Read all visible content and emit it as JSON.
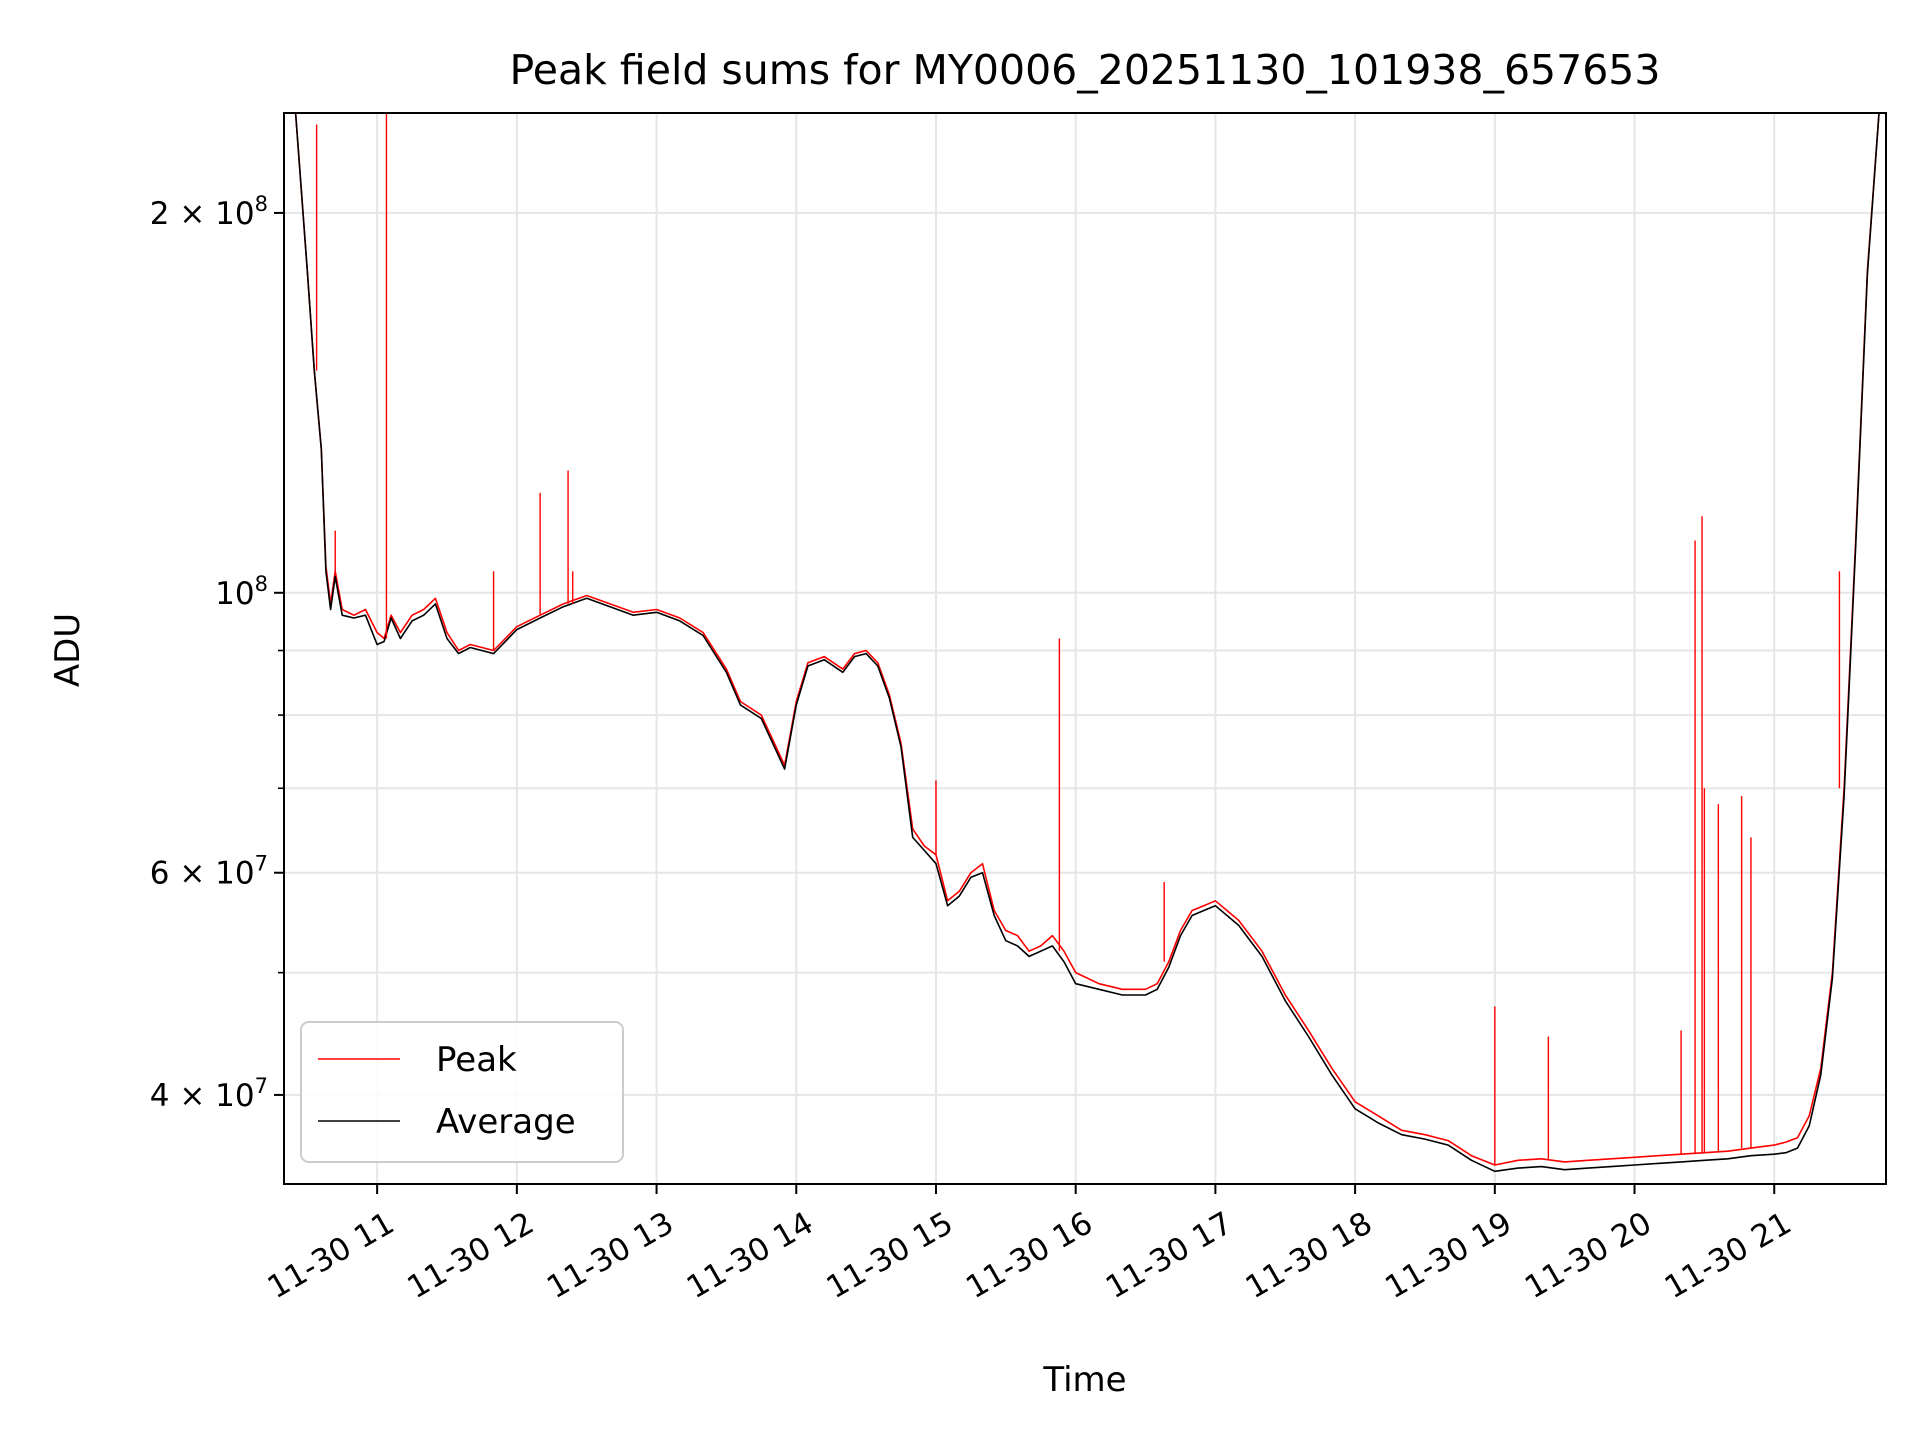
{
  "chart_data": {
    "type": "line",
    "title": "Peak field sums for MY0006_20251130_101938_657653",
    "xlabel": "Time",
    "ylabel": "ADU",
    "xlim": [
      "2025-11-30 10:20",
      "2025-11-30 21:48"
    ],
    "ylim": [
      34000000,
      240000000
    ],
    "y_scale": "log",
    "grid": true,
    "legend_position": "lower-left",
    "x_ticks": [
      "11-30 11",
      "11-30 12",
      "11-30 13",
      "11-30 14",
      "11-30 15",
      "11-30 16",
      "11-30 17",
      "11-30 18",
      "11-30 19",
      "11-30 20",
      "11-30 21"
    ],
    "x_tick_times": [
      "2025-11-30 11:00",
      "2025-11-30 12:00",
      "2025-11-30 13:00",
      "2025-11-30 14:00",
      "2025-11-30 15:00",
      "2025-11-30 16:00",
      "2025-11-30 17:00",
      "2025-11-30 18:00",
      "2025-11-30 19:00",
      "2025-11-30 20:00",
      "2025-11-30 21:00"
    ],
    "y_ticks": [
      {
        "value": 40000000,
        "mantissa": "4",
        "exp": "7"
      },
      {
        "value": 60000000,
        "mantissa": "6",
        "exp": "7"
      },
      {
        "value": 100000000,
        "mantissa": "",
        "exp": "8"
      },
      {
        "value": 200000000,
        "mantissa": "2",
        "exp": "8"
      }
    ],
    "y_minor_ticks": [
      50000000,
      70000000,
      80000000,
      90000000
    ],
    "series": [
      {
        "name": "Peak",
        "color": "#ff0000",
        "x": [
          "2025-11-30 10:25",
          "2025-11-30 10:30",
          "2025-11-30 10:33",
          "2025-11-30 10:36",
          "2025-11-30 10:38",
          "2025-11-30 10:40",
          "2025-11-30 10:42",
          "2025-11-30 10:45",
          "2025-11-30 10:50",
          "2025-11-30 10:55",
          "2025-11-30 11:00",
          "2025-11-30 11:03",
          "2025-11-30 11:06",
          "2025-11-30 11:10",
          "2025-11-30 11:15",
          "2025-11-30 11:20",
          "2025-11-30 11:25",
          "2025-11-30 11:30",
          "2025-11-30 11:35",
          "2025-11-30 11:40",
          "2025-11-30 11:50",
          "2025-11-30 12:00",
          "2025-11-30 12:10",
          "2025-11-30 12:20",
          "2025-11-30 12:30",
          "2025-11-30 12:40",
          "2025-11-30 12:50",
          "2025-11-30 13:00",
          "2025-11-30 13:10",
          "2025-11-30 13:20",
          "2025-11-30 13:30",
          "2025-11-30 13:36",
          "2025-11-30 13:45",
          "2025-11-30 13:55",
          "2025-11-30 14:00",
          "2025-11-30 14:05",
          "2025-11-30 14:12",
          "2025-11-30 14:20",
          "2025-11-30 14:25",
          "2025-11-30 14:30",
          "2025-11-30 14:35",
          "2025-11-30 14:40",
          "2025-11-30 14:45",
          "2025-11-30 14:50",
          "2025-11-30 14:55",
          "2025-11-30 15:00",
          "2025-11-30 15:05",
          "2025-11-30 15:10",
          "2025-11-30 15:15",
          "2025-11-30 15:20",
          "2025-11-30 15:25",
          "2025-11-30 15:30",
          "2025-11-30 15:35",
          "2025-11-30 15:40",
          "2025-11-30 15:45",
          "2025-11-30 15:50",
          "2025-11-30 15:55",
          "2025-11-30 16:00",
          "2025-11-30 16:10",
          "2025-11-30 16:20",
          "2025-11-30 16:25",
          "2025-11-30 16:30",
          "2025-11-30 16:35",
          "2025-11-30 16:40",
          "2025-11-30 16:45",
          "2025-11-30 16:50",
          "2025-11-30 16:55",
          "2025-11-30 17:00",
          "2025-11-30 17:10",
          "2025-11-30 17:20",
          "2025-11-30 17:30",
          "2025-11-30 17:40",
          "2025-11-30 17:50",
          "2025-11-30 18:00",
          "2025-11-30 18:10",
          "2025-11-30 18:20",
          "2025-11-30 18:30",
          "2025-11-30 18:40",
          "2025-11-30 18:50",
          "2025-11-30 19:00",
          "2025-11-30 19:10",
          "2025-11-30 19:20",
          "2025-11-30 19:30",
          "2025-11-30 19:40",
          "2025-11-30 19:50",
          "2025-11-30 20:00",
          "2025-11-30 20:10",
          "2025-11-30 20:20",
          "2025-11-30 20:30",
          "2025-11-30 20:40",
          "2025-11-30 20:50",
          "2025-11-30 21:00",
          "2025-11-30 21:05",
          "2025-11-30 21:10",
          "2025-11-30 21:15",
          "2025-11-30 21:20",
          "2025-11-30 21:25",
          "2025-11-30 21:30",
          "2025-11-30 21:35",
          "2025-11-30 21:40",
          "2025-11-30 21:45"
        ],
        "y": [
          240000000,
          180000000,
          150000000,
          130000000,
          105000000,
          98000000,
          104000000,
          97000000,
          96000000,
          97000000,
          93000000,
          92000000,
          96000000,
          93000000,
          96000000,
          97000000,
          99000000,
          93000000,
          90000000,
          91000000,
          90000000,
          94000000,
          96000000,
          98000000,
          99500000,
          98000000,
          96500000,
          97000000,
          95500000,
          93000000,
          87000000,
          82000000,
          80000000,
          73000000,
          82000000,
          88000000,
          89000000,
          87000000,
          89500000,
          90000000,
          88000000,
          83000000,
          76000000,
          65000000,
          63000000,
          62000000,
          57000000,
          58000000,
          60000000,
          61000000,
          56000000,
          54000000,
          53500000,
          52000000,
          52500000,
          53500000,
          52000000,
          50000000,
          49000000,
          48500000,
          48500000,
          48500000,
          49000000,
          51000000,
          54000000,
          56000000,
          56500000,
          57000000,
          55000000,
          52000000,
          48000000,
          45000000,
          42000000,
          39500000,
          38500000,
          37500000,
          37200000,
          36800000,
          35800000,
          35200000,
          35500000,
          35600000,
          35400000,
          35500000,
          35600000,
          35700000,
          35800000,
          35900000,
          36000000,
          36100000,
          36300000,
          36500000,
          36700000,
          37000000,
          38500000,
          42000000,
          50000000,
          70000000,
          110000000,
          180000000,
          240000000
        ]
      },
      {
        "name": "Average",
        "color": "#000000",
        "x": [
          "2025-11-30 10:25",
          "2025-11-30 10:30",
          "2025-11-30 10:33",
          "2025-11-30 10:36",
          "2025-11-30 10:38",
          "2025-11-30 10:40",
          "2025-11-30 10:42",
          "2025-11-30 10:45",
          "2025-11-30 10:50",
          "2025-11-30 10:55",
          "2025-11-30 11:00",
          "2025-11-30 11:03",
          "2025-11-30 11:06",
          "2025-11-30 11:10",
          "2025-11-30 11:15",
          "2025-11-30 11:20",
          "2025-11-30 11:25",
          "2025-11-30 11:30",
          "2025-11-30 11:35",
          "2025-11-30 11:40",
          "2025-11-30 11:50",
          "2025-11-30 12:00",
          "2025-11-30 12:10",
          "2025-11-30 12:20",
          "2025-11-30 12:30",
          "2025-11-30 12:40",
          "2025-11-30 12:50",
          "2025-11-30 13:00",
          "2025-11-30 13:10",
          "2025-11-30 13:20",
          "2025-11-30 13:30",
          "2025-11-30 13:36",
          "2025-11-30 13:45",
          "2025-11-30 13:55",
          "2025-11-30 14:00",
          "2025-11-30 14:05",
          "2025-11-30 14:12",
          "2025-11-30 14:20",
          "2025-11-30 14:25",
          "2025-11-30 14:30",
          "2025-11-30 14:35",
          "2025-11-30 14:40",
          "2025-11-30 14:45",
          "2025-11-30 14:50",
          "2025-11-30 14:55",
          "2025-11-30 15:00",
          "2025-11-30 15:05",
          "2025-11-30 15:10",
          "2025-11-30 15:15",
          "2025-11-30 15:20",
          "2025-11-30 15:25",
          "2025-11-30 15:30",
          "2025-11-30 15:35",
          "2025-11-30 15:40",
          "2025-11-30 15:45",
          "2025-11-30 15:50",
          "2025-11-30 15:55",
          "2025-11-30 16:00",
          "2025-11-30 16:10",
          "2025-11-30 16:20",
          "2025-11-30 16:25",
          "2025-11-30 16:30",
          "2025-11-30 16:35",
          "2025-11-30 16:40",
          "2025-11-30 16:45",
          "2025-11-30 16:50",
          "2025-11-30 16:55",
          "2025-11-30 17:00",
          "2025-11-30 17:10",
          "2025-11-30 17:20",
          "2025-11-30 17:30",
          "2025-11-30 17:40",
          "2025-11-30 17:50",
          "2025-11-30 18:00",
          "2025-11-30 18:10",
          "2025-11-30 18:20",
          "2025-11-30 18:30",
          "2025-11-30 18:40",
          "2025-11-30 18:50",
          "2025-11-30 19:00",
          "2025-11-30 19:10",
          "2025-11-30 19:20",
          "2025-11-30 19:30",
          "2025-11-30 19:40",
          "2025-11-30 19:50",
          "2025-11-30 20:00",
          "2025-11-30 20:10",
          "2025-11-30 20:20",
          "2025-11-30 20:30",
          "2025-11-30 20:40",
          "2025-11-30 20:50",
          "2025-11-30 21:00",
          "2025-11-30 21:05",
          "2025-11-30 21:10",
          "2025-11-30 21:15",
          "2025-11-30 21:20",
          "2025-11-30 21:25",
          "2025-11-30 21:30",
          "2025-11-30 21:35",
          "2025-11-30 21:40",
          "2025-11-30 21:45"
        ],
        "y": [
          240000000,
          180000000,
          150000000,
          130000000,
          104000000,
          97000000,
          103000000,
          96000000,
          95500000,
          96000000,
          91000000,
          91500000,
          95500000,
          92000000,
          95000000,
          96000000,
          98000000,
          92000000,
          89500000,
          90500000,
          89500000,
          93500000,
          95500000,
          97500000,
          99000000,
          97500000,
          96000000,
          96500000,
          95000000,
          92500000,
          86500000,
          81500000,
          79500000,
          72500000,
          81500000,
          87500000,
          88500000,
          86500000,
          89000000,
          89500000,
          87500000,
          82500000,
          75500000,
          64000000,
          62500000,
          61000000,
          56500000,
          57500000,
          59500000,
          60000000,
          55500000,
          53000000,
          52500000,
          51500000,
          52000000,
          52500000,
          51000000,
          49000000,
          48500000,
          48000000,
          48000000,
          48000000,
          48500000,
          50500000,
          53500000,
          55500000,
          56000000,
          56500000,
          54500000,
          51500000,
          47500000,
          44500000,
          41500000,
          39000000,
          38000000,
          37200000,
          36900000,
          36500000,
          35500000,
          34800000,
          35000000,
          35100000,
          34900000,
          35000000,
          35100000,
          35200000,
          35300000,
          35400000,
          35500000,
          35600000,
          35800000,
          35900000,
          36000000,
          36300000,
          37800000,
          41500000,
          49500000,
          69000000,
          109000000,
          179000000,
          240000000
        ]
      }
    ],
    "spikes": {
      "series": "Peak",
      "x": [
        "2025-11-30 10:34",
        "2025-11-30 10:42",
        "2025-11-30 11:04",
        "2025-11-30 11:50",
        "2025-11-30 12:10",
        "2025-11-30 12:22",
        "2025-11-30 12:24",
        "2025-11-30 15:00",
        "2025-11-30 15:53",
        "2025-11-30 16:38",
        "2025-11-30 19:00",
        "2025-11-30 19:23",
        "2025-11-30 20:20",
        "2025-11-30 20:26",
        "2025-11-30 20:29",
        "2025-11-30 20:30",
        "2025-11-30 20:36",
        "2025-11-30 20:46",
        "2025-11-30 20:50",
        "2025-11-30 21:28"
      ],
      "y": [
        235000000,
        112000000,
        240000000,
        104000000,
        120000000,
        125000000,
        104000000,
        71000000,
        92000000,
        59000000,
        47000000,
        44500000,
        45000000,
        110000000,
        115000000,
        70000000,
        68000000,
        69000000,
        64000000,
        104000000
      ]
    }
  }
}
